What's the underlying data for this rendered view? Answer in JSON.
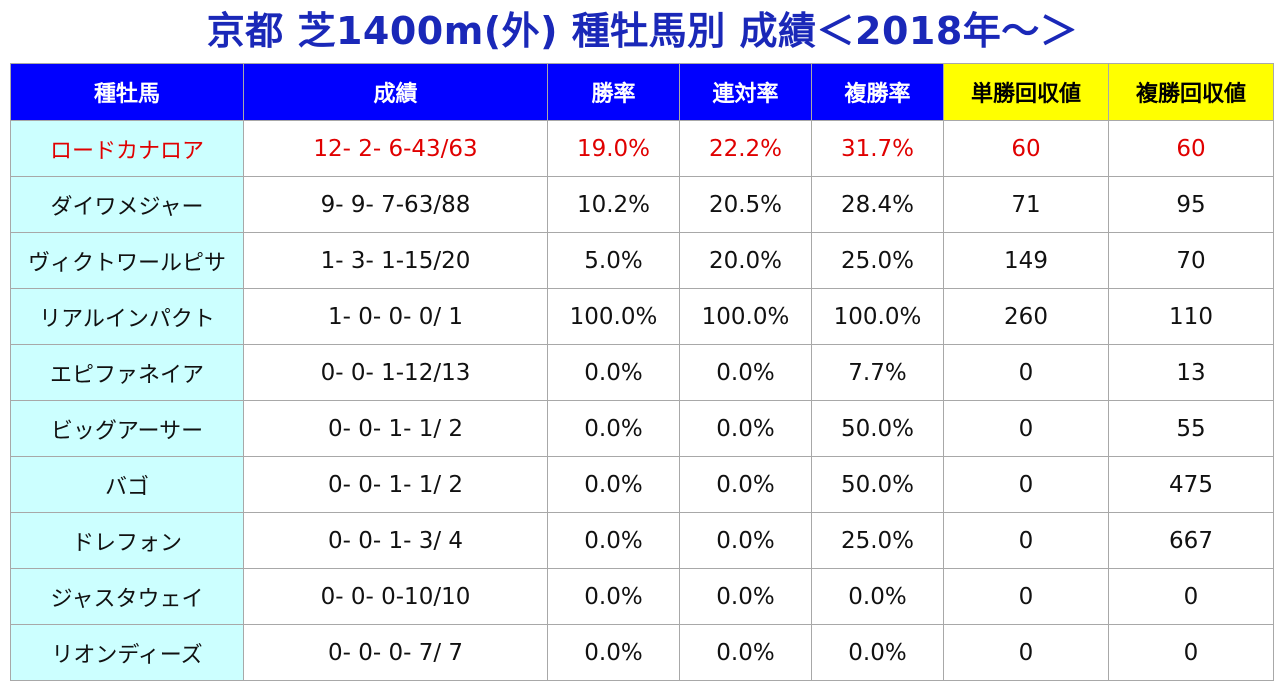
{
  "title": "京都 芝1400m(外) 種牡馬別 成績＜2018年～＞",
  "colors": {
    "title": "#1a28b8",
    "header_bg": "#0000ff",
    "recovery_header_bg": "#ffff00",
    "sire_col_bg": "#ccffff",
    "highlight_text": "#e00000"
  },
  "table": {
    "headers": [
      "種牡馬",
      "成績",
      "勝率",
      "連対率",
      "複勝率",
      "単勝回収値",
      "複勝回収値"
    ],
    "rows": [
      [
        "ロードカナロア",
        "12- 2- 6-43/63",
        "19.0%",
        "22.2%",
        "31.7%",
        "60",
        "60"
      ],
      [
        "ダイワメジャー",
        "9- 9- 7-63/88",
        "10.2%",
        "20.5%",
        "28.4%",
        "71",
        "95"
      ],
      [
        "ヴィクトワールピサ",
        "1- 3- 1-15/20",
        "5.0%",
        "20.0%",
        "25.0%",
        "149",
        "70"
      ],
      [
        "リアルインパクト",
        "1- 0- 0- 0/ 1",
        "100.0%",
        "100.0%",
        "100.0%",
        "260",
        "110"
      ],
      [
        "エピファネイア",
        "0- 0- 1-12/13",
        "0.0%",
        "0.0%",
        "7.7%",
        "0",
        "13"
      ],
      [
        "ビッグアーサー",
        "0- 0- 1- 1/ 2",
        "0.0%",
        "0.0%",
        "50.0%",
        "0",
        "55"
      ],
      [
        "バゴ",
        "0- 0- 1- 1/ 2",
        "0.0%",
        "0.0%",
        "50.0%",
        "0",
        "475"
      ],
      [
        "ドレフォン",
        "0- 0- 1- 3/ 4",
        "0.0%",
        "0.0%",
        "25.0%",
        "0",
        "667"
      ],
      [
        "ジャスタウェイ",
        "0- 0- 0-10/10",
        "0.0%",
        "0.0%",
        "0.0%",
        "0",
        "0"
      ],
      [
        "リオンディーズ",
        "0- 0- 0- 7/ 7",
        "0.0%",
        "0.0%",
        "0.0%",
        "0",
        "0"
      ]
    ]
  }
}
